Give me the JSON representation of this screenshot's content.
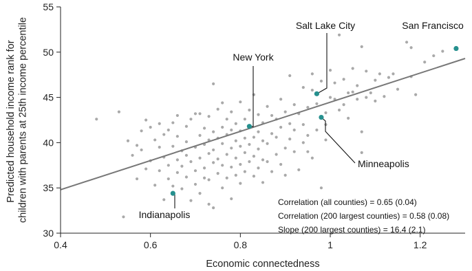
{
  "chart_data": {
    "type": "scatter",
    "title": "",
    "xlabel": "Economic connectedness",
    "ylabel": [
      "Predicted household income rank for",
      "children with parents at 25th income percentile"
    ],
    "xlim": [
      0.4,
      1.3
    ],
    "ylim": [
      30,
      55
    ],
    "xticks": [
      0.4,
      0.6,
      0.8,
      1.0,
      1.2
    ],
    "xtick_labels": [
      "0.4",
      "0.6",
      "0.8",
      "1",
      "1.2"
    ],
    "yticks": [
      30,
      35,
      40,
      45,
      50,
      55
    ],
    "ytick_labels": [
      "30",
      "35",
      "40",
      "45",
      "50",
      "55"
    ],
    "grid": false,
    "colors": {
      "points": "#a9a9a9",
      "highlight": "#26908e",
      "fit_line": "#777777",
      "axes": "#222222"
    },
    "fit_line": {
      "x": [
        0.4,
        1.3
      ],
      "y": [
        34.8,
        49.3
      ]
    },
    "points": [
      [
        0.48,
        42.6
      ],
      [
        0.53,
        43.4
      ],
      [
        0.54,
        31.8
      ],
      [
        0.55,
        40.2
      ],
      [
        0.56,
        38.6
      ],
      [
        0.57,
        39.7
      ],
      [
        0.57,
        36.0
      ],
      [
        0.58,
        41.3
      ],
      [
        0.58,
        39.2
      ],
      [
        0.59,
        42.5
      ],
      [
        0.59,
        37.1
      ],
      [
        0.6,
        41.7
      ],
      [
        0.6,
        38.0
      ],
      [
        0.61,
        35.3
      ],
      [
        0.61,
        40.3
      ],
      [
        0.62,
        42.1
      ],
      [
        0.62,
        36.9
      ],
      [
        0.62,
        39.5
      ],
      [
        0.63,
        33.7
      ],
      [
        0.63,
        38.4
      ],
      [
        0.63,
        40.9
      ],
      [
        0.64,
        37.5
      ],
      [
        0.64,
        41.4
      ],
      [
        0.64,
        36.0
      ],
      [
        0.65,
        39.6
      ],
      [
        0.65,
        42.2
      ],
      [
        0.65,
        35.2
      ],
      [
        0.66,
        38.1
      ],
      [
        0.66,
        40.7
      ],
      [
        0.66,
        36.7
      ],
      [
        0.66,
        43.0
      ],
      [
        0.67,
        37.4
      ],
      [
        0.67,
        39.1
      ],
      [
        0.67,
        34.9
      ],
      [
        0.68,
        41.8
      ],
      [
        0.68,
        38.6
      ],
      [
        0.68,
        36.2
      ],
      [
        0.68,
        40.1
      ],
      [
        0.69,
        33.6
      ],
      [
        0.69,
        37.9
      ],
      [
        0.69,
        42.6
      ],
      [
        0.7,
        35.4
      ],
      [
        0.7,
        39.5
      ],
      [
        0.7,
        43.2
      ],
      [
        0.7,
        36.9
      ],
      [
        0.71,
        38.3
      ],
      [
        0.71,
        40.8
      ],
      [
        0.71,
        34.4
      ],
      [
        0.71,
        43.2
      ],
      [
        0.72,
        37.2
      ],
      [
        0.72,
        39.8
      ],
      [
        0.72,
        36.1
      ],
      [
        0.72,
        41.6
      ],
      [
        0.73,
        38.8
      ],
      [
        0.73,
        33.2
      ],
      [
        0.73,
        35.9
      ],
      [
        0.73,
        40.3
      ],
      [
        0.73,
        42.9
      ],
      [
        0.74,
        37.8
      ],
      [
        0.74,
        39.2
      ],
      [
        0.74,
        41.2
      ],
      [
        0.74,
        46.5
      ],
      [
        0.75,
        36.6
      ],
      [
        0.75,
        38.2
      ],
      [
        0.75,
        40.5
      ],
      [
        0.75,
        43.7
      ],
      [
        0.76,
        35.0
      ],
      [
        0.76,
        37.5
      ],
      [
        0.76,
        39.9
      ],
      [
        0.76,
        41.7
      ],
      [
        0.76,
        44.4
      ],
      [
        0.77,
        36.1
      ],
      [
        0.77,
        38.7
      ],
      [
        0.77,
        40.9
      ],
      [
        0.77,
        42.6
      ],
      [
        0.78,
        37.3
      ],
      [
        0.78,
        39.4
      ],
      [
        0.78,
        33.8
      ],
      [
        0.78,
        41.4
      ],
      [
        0.78,
        43.4
      ],
      [
        0.79,
        36.4
      ],
      [
        0.79,
        38.3
      ],
      [
        0.79,
        40.2
      ],
      [
        0.79,
        42.1
      ],
      [
        0.8,
        35.5
      ],
      [
        0.8,
        37.6
      ],
      [
        0.8,
        39.6
      ],
      [
        0.8,
        41.3
      ],
      [
        0.8,
        44.5
      ],
      [
        0.81,
        36.8
      ],
      [
        0.81,
        38.9
      ],
      [
        0.81,
        42.6
      ],
      [
        0.81,
        40.5
      ],
      [
        0.82,
        37.9
      ],
      [
        0.82,
        39.8
      ],
      [
        0.82,
        43.6
      ],
      [
        0.83,
        36.3
      ],
      [
        0.83,
        38.5
      ],
      [
        0.83,
        40.6
      ],
      [
        0.83,
        45.3
      ],
      [
        0.84,
        37.2
      ],
      [
        0.84,
        39.3
      ],
      [
        0.84,
        41.2
      ],
      [
        0.84,
        43.1
      ],
      [
        0.85,
        35.6
      ],
      [
        0.85,
        38.1
      ],
      [
        0.85,
        40.2
      ],
      [
        0.85,
        42.2
      ],
      [
        0.86,
        37.9
      ],
      [
        0.86,
        39.9
      ],
      [
        0.86,
        44.0
      ],
      [
        0.87,
        41.0
      ],
      [
        0.87,
        36.8
      ],
      [
        0.87,
        43.0
      ],
      [
        0.88,
        38.7
      ],
      [
        0.88,
        40.6
      ],
      [
        0.88,
        42.6
      ],
      [
        0.89,
        44.8
      ],
      [
        0.89,
        37.6
      ],
      [
        0.89,
        41.7
      ],
      [
        0.9,
        39.4
      ],
      [
        0.9,
        43.4
      ],
      [
        0.9,
        36.4
      ],
      [
        0.91,
        40.4
      ],
      [
        0.91,
        42.1
      ],
      [
        0.91,
        47.4
      ],
      [
        0.92,
        39.0
      ],
      [
        0.92,
        41.4
      ],
      [
        0.92,
        44.2
      ],
      [
        0.93,
        43.2
      ],
      [
        0.93,
        37.0
      ],
      [
        0.94,
        40.0
      ],
      [
        0.94,
        42.0
      ],
      [
        0.94,
        46.1
      ],
      [
        0.95,
        43.9
      ],
      [
        0.95,
        40.8
      ],
      [
        0.96,
        38.3
      ],
      [
        0.96,
        47.6
      ],
      [
        0.96,
        45.8
      ],
      [
        0.97,
        44.3
      ],
      [
        0.97,
        41.4
      ],
      [
        0.98,
        35.0
      ],
      [
        0.98,
        46.8
      ],
      [
        0.99,
        43.3
      ],
      [
        0.99,
        40.3
      ],
      [
        1.0,
        48.0
      ],
      [
        1.0,
        45.0
      ],
      [
        1.01,
        44.8
      ],
      [
        1.01,
        46.6
      ],
      [
        1.02,
        43.6
      ],
      [
        1.02,
        51.9
      ],
      [
        1.03,
        44.2
      ],
      [
        1.03,
        47.0
      ],
      [
        1.04,
        45.5
      ],
      [
        1.04,
        42.7
      ],
      [
        1.05,
        48.2
      ],
      [
        1.05,
        45.6
      ],
      [
        1.06,
        44.8
      ],
      [
        1.06,
        46.3
      ],
      [
        1.07,
        38.9
      ],
      [
        1.07,
        41.2
      ],
      [
        1.08,
        47.9
      ],
      [
        1.08,
        45.0
      ],
      [
        1.09,
        45.5
      ],
      [
        1.1,
        46.9
      ],
      [
        1.1,
        44.6
      ],
      [
        1.11,
        47.6
      ],
      [
        1.12,
        45.1
      ],
      [
        1.13,
        47.2
      ],
      [
        1.14,
        47.6
      ],
      [
        1.15,
        45.9
      ],
      [
        1.17,
        51.1
      ],
      [
        1.18,
        50.5
      ],
      [
        1.18,
        47.3
      ],
      [
        1.19,
        45.3
      ],
      [
        1.21,
        48.9
      ],
      [
        1.23,
        49.6
      ],
      [
        1.25,
        50.1
      ],
      [
        1.07,
        50.6
      ],
      [
        0.99,
        42.0
      ],
      [
        0.95,
        39.0
      ],
      [
        0.74,
        32.8
      ]
    ],
    "highlighted": [
      {
        "name": "San Francisco",
        "x": 1.28,
        "y": 50.4
      },
      {
        "name": "Salt Lake City",
        "x": 0.97,
        "y": 45.4
      },
      {
        "name": "New York",
        "x": 0.82,
        "y": 41.8
      },
      {
        "name": "Minneapolis",
        "x": 0.98,
        "y": 42.8
      },
      {
        "name": "Indianapolis",
        "x": 0.65,
        "y": 34.4
      }
    ],
    "stats": [
      "Correlation (all counties) = 0.65 (0.04)",
      "Correlation (200 largest counties) = 0.58 (0.08)",
      "Slope (200 largest counties) = 16.4 (2.1)"
    ]
  }
}
